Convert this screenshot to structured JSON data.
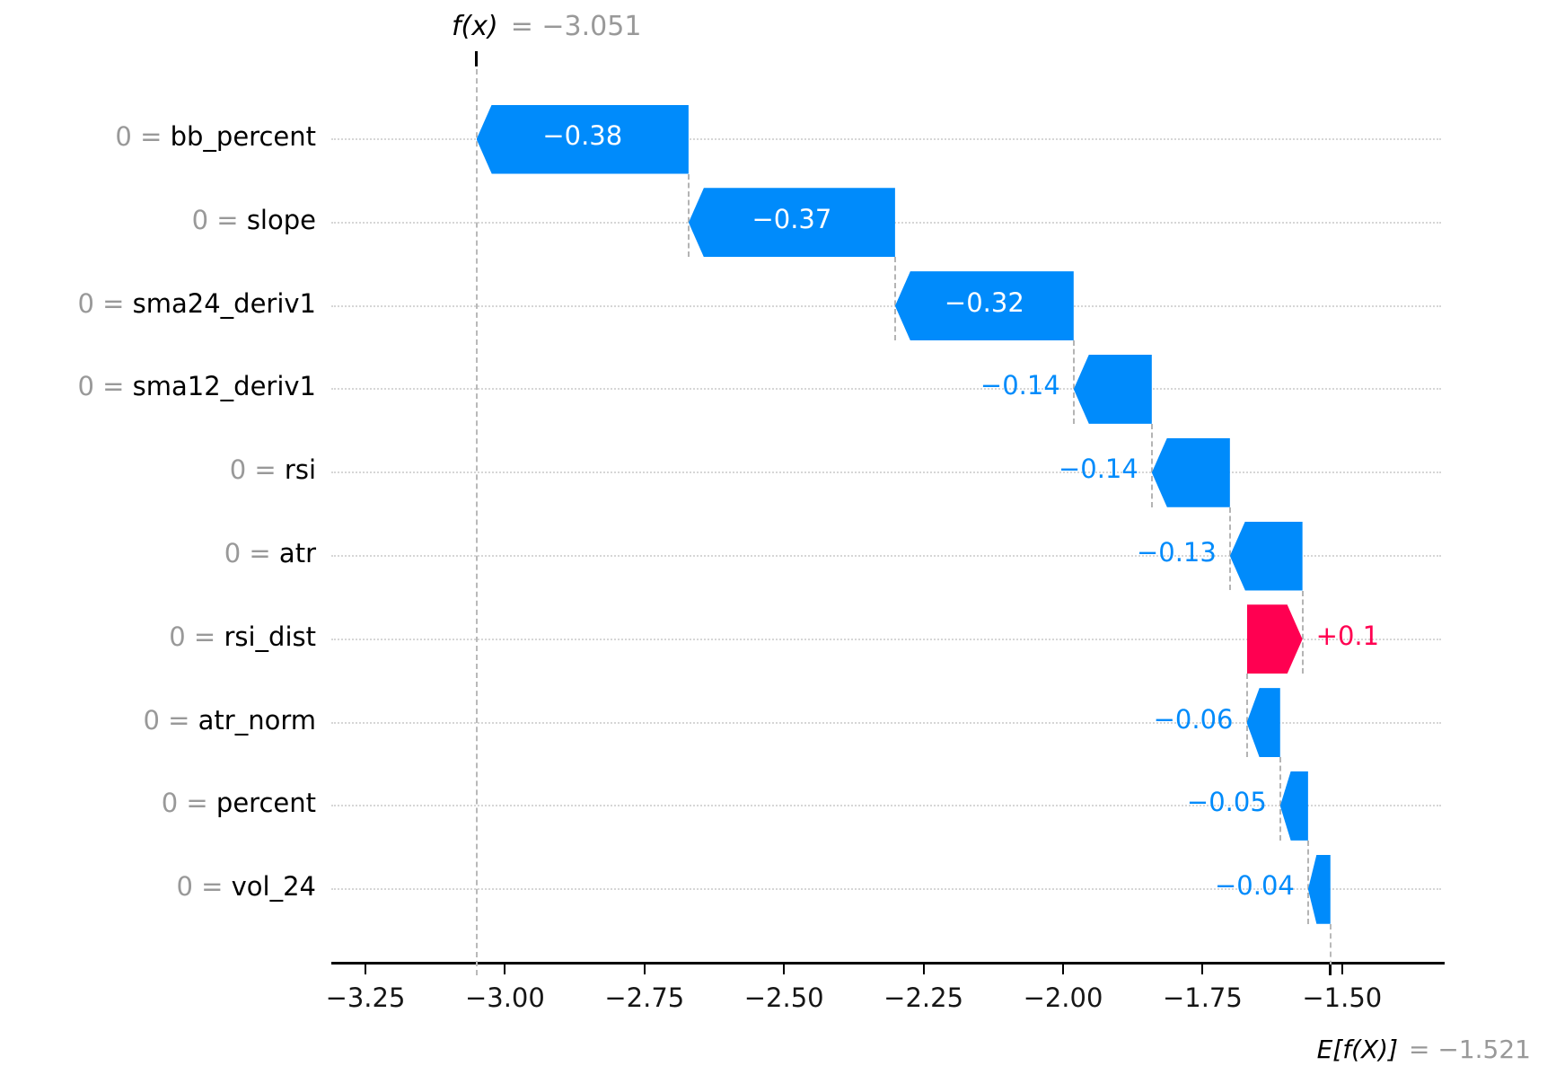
{
  "chart_data": {
    "type": "waterfall",
    "title": {
      "fx_label": "f(x)",
      "fx_value_text": "= −3.051",
      "fx": -3.051
    },
    "base": {
      "ef_label": "E[f(X)]",
      "ef_value_text": "= −1.521",
      "ef": -1.521
    },
    "features": [
      {
        "row_label_prefix": "0 = ",
        "name": "bb_percent",
        "shap": -0.38,
        "shap_text": "−0.38"
      },
      {
        "row_label_prefix": "0 = ",
        "name": "slope",
        "shap": -0.37,
        "shap_text": "−0.37"
      },
      {
        "row_label_prefix": "0 = ",
        "name": "sma24_deriv1",
        "shap": -0.32,
        "shap_text": "−0.32"
      },
      {
        "row_label_prefix": "0 = ",
        "name": "sma12_deriv1",
        "shap": -0.14,
        "shap_text": "−0.14"
      },
      {
        "row_label_prefix": "0 = ",
        "name": "rsi",
        "shap": -0.14,
        "shap_text": "−0.14"
      },
      {
        "row_label_prefix": "0 = ",
        "name": "atr",
        "shap": -0.13,
        "shap_text": "−0.13"
      },
      {
        "row_label_prefix": "0 = ",
        "name": "rsi_dist",
        "shap": 0.1,
        "shap_text": "+0.1"
      },
      {
        "row_label_prefix": "0 = ",
        "name": "atr_norm",
        "shap": -0.06,
        "shap_text": "−0.06"
      },
      {
        "row_label_prefix": "0 = ",
        "name": "percent",
        "shap": -0.05,
        "shap_text": "−0.05"
      },
      {
        "row_label_prefix": "0 = ",
        "name": "vol_24",
        "shap": -0.04,
        "shap_text": "−0.04"
      }
    ],
    "x_ticks": [
      {
        "value": -3.25,
        "label": "−3.25"
      },
      {
        "value": -3.0,
        "label": "−3.00"
      },
      {
        "value": -2.75,
        "label": "−2.75"
      },
      {
        "value": -2.5,
        "label": "−2.50"
      },
      {
        "value": -2.25,
        "label": "−2.25"
      },
      {
        "value": -2.0,
        "label": "−2.00"
      },
      {
        "value": -1.75,
        "label": "−1.75"
      },
      {
        "value": -1.5,
        "label": "−1.50"
      }
    ],
    "xlim": [
      -3.311,
      -1.316
    ],
    "grid": "dotted-horizontal-per-row",
    "legend": "none",
    "colors": {
      "negative_bar": "#008bfb",
      "positive_bar": "#ff0051",
      "inside_bar_text": "#ffffff",
      "muted_text": "#999999",
      "axis_text": "#161616",
      "connector": "#b4b4b4",
      "gridline": "#d6d6d6"
    }
  }
}
